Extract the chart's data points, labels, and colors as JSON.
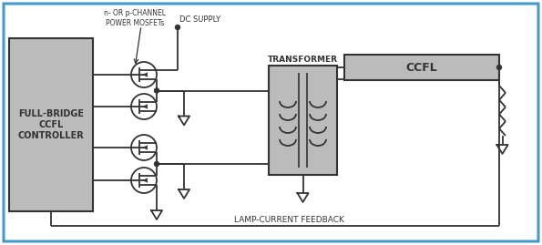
{
  "bg_color": "#ffffff",
  "border_color": "#4499cc",
  "box_fill": "#c8c8c8",
  "line_color": "#333333",
  "lw": 1.3,
  "figsize": [
    5.95,
    2.69
  ],
  "dpi": 100,
  "labels": {
    "mosfet": "n- OR p-CHANNEL\nPOWER MOSFETs",
    "dc_supply": "DC SUPPLY",
    "transformer": "TRANSFORMER",
    "ccfl": "CCFL",
    "controller": "FULL-BRIDGE\nCCFL\nCONTROLLER",
    "feedback": "LAMP-CURRENT FEEDBACK"
  }
}
